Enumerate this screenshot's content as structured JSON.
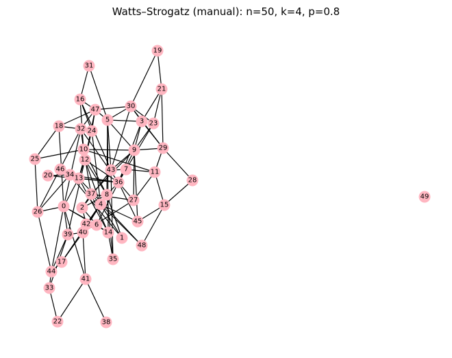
{
  "title": "Watts–Strogatz (manual): n=50, k=4, p=0.8",
  "style": {
    "node_color": "#ffb6c1",
    "edge_color": "#000000",
    "background": "#ffffff"
  },
  "nodes": [
    "0",
    "1",
    "2",
    "3",
    "4",
    "5",
    "6",
    "7",
    "8",
    "9",
    "10",
    "11",
    "12",
    "13",
    "14",
    "15",
    "16",
    "17",
    "18",
    "19",
    "20",
    "21",
    "22",
    "23",
    "24",
    "25",
    "26",
    "27",
    "28",
    "29",
    "30",
    "31",
    "32",
    "33",
    "34",
    "35",
    "36",
    "37",
    "38",
    "39",
    "40",
    "41",
    "42",
    "43",
    "44",
    "45",
    "46",
    "47",
    "48",
    "49"
  ],
  "edges": [
    [
      "19",
      "30"
    ],
    [
      "19",
      "21"
    ],
    [
      "21",
      "23"
    ],
    [
      "21",
      "29"
    ],
    [
      "21",
      "3"
    ],
    [
      "30",
      "3"
    ],
    [
      "30",
      "23"
    ],
    [
      "30",
      "29"
    ],
    [
      "30",
      "47"
    ],
    [
      "30",
      "43"
    ],
    [
      "30",
      "5"
    ],
    [
      "31",
      "16"
    ],
    [
      "31",
      "5"
    ],
    [
      "16",
      "47"
    ],
    [
      "16",
      "10"
    ],
    [
      "16",
      "24"
    ],
    [
      "16",
      "43"
    ],
    [
      "47",
      "18"
    ],
    [
      "47",
      "5"
    ],
    [
      "47",
      "32"
    ],
    [
      "47",
      "24"
    ],
    [
      "47",
      "12"
    ],
    [
      "5",
      "3"
    ],
    [
      "5",
      "9"
    ],
    [
      "5",
      "8"
    ],
    [
      "5",
      "14"
    ],
    [
      "5",
      "43"
    ],
    [
      "3",
      "9"
    ],
    [
      "3",
      "29"
    ],
    [
      "3",
      "36"
    ],
    [
      "23",
      "9"
    ],
    [
      "23",
      "7"
    ],
    [
      "18",
      "25"
    ],
    [
      "18",
      "32"
    ],
    [
      "18",
      "0"
    ],
    [
      "32",
      "24"
    ],
    [
      "32",
      "10"
    ],
    [
      "32",
      "0"
    ],
    [
      "32",
      "36"
    ],
    [
      "32",
      "26"
    ],
    [
      "24",
      "13"
    ],
    [
      "24",
      "4"
    ],
    [
      "24",
      "12"
    ],
    [
      "10",
      "25"
    ],
    [
      "10",
      "9"
    ],
    [
      "10",
      "11"
    ],
    [
      "10",
      "12"
    ],
    [
      "10",
      "37"
    ],
    [
      "10",
      "8"
    ],
    [
      "25",
      "26"
    ],
    [
      "9",
      "27"
    ],
    [
      "9",
      "37"
    ],
    [
      "9",
      "29"
    ],
    [
      "9",
      "43"
    ],
    [
      "9",
      "36"
    ],
    [
      "9",
      "45"
    ],
    [
      "29",
      "11"
    ],
    [
      "29",
      "28"
    ],
    [
      "7",
      "43"
    ],
    [
      "7",
      "11"
    ],
    [
      "7",
      "36"
    ],
    [
      "11",
      "15"
    ],
    [
      "11",
      "27"
    ],
    [
      "28",
      "15"
    ],
    [
      "15",
      "45"
    ],
    [
      "15",
      "48"
    ],
    [
      "12",
      "13"
    ],
    [
      "12",
      "36"
    ],
    [
      "12",
      "39"
    ],
    [
      "12",
      "4"
    ],
    [
      "12",
      "8"
    ],
    [
      "43",
      "2"
    ],
    [
      "43",
      "35"
    ],
    [
      "46",
      "34"
    ],
    [
      "46",
      "13"
    ],
    [
      "34",
      "20"
    ],
    [
      "34",
      "36"
    ],
    [
      "34",
      "26"
    ],
    [
      "34",
      "1"
    ],
    [
      "20",
      "36"
    ],
    [
      "13",
      "36"
    ],
    [
      "13",
      "48"
    ],
    [
      "13",
      "14"
    ],
    [
      "13",
      "0"
    ],
    [
      "37",
      "4"
    ],
    [
      "37",
      "2"
    ],
    [
      "37",
      "27"
    ],
    [
      "37",
      "14"
    ],
    [
      "36",
      "27"
    ],
    [
      "36",
      "8"
    ],
    [
      "36",
      "6"
    ],
    [
      "36",
      "45"
    ],
    [
      "8",
      "2"
    ],
    [
      "8",
      "4"
    ],
    [
      "8",
      "42"
    ],
    [
      "8",
      "35"
    ],
    [
      "8",
      "1"
    ],
    [
      "0",
      "26"
    ],
    [
      "0",
      "39"
    ],
    [
      "0",
      "41"
    ],
    [
      "0",
      "6"
    ],
    [
      "0",
      "44"
    ],
    [
      "0",
      "14"
    ],
    [
      "27",
      "40"
    ],
    [
      "2",
      "6"
    ],
    [
      "2",
      "42"
    ],
    [
      "4",
      "45"
    ],
    [
      "4",
      "40"
    ],
    [
      "4",
      "17"
    ],
    [
      "4",
      "1"
    ],
    [
      "4",
      "48"
    ],
    [
      "42",
      "6"
    ],
    [
      "42",
      "40"
    ],
    [
      "6",
      "14"
    ],
    [
      "39",
      "40"
    ],
    [
      "40",
      "41"
    ],
    [
      "40",
      "17"
    ],
    [
      "17",
      "44"
    ],
    [
      "44",
      "33"
    ],
    [
      "44",
      "39"
    ],
    [
      "26",
      "44"
    ],
    [
      "14",
      "35"
    ],
    [
      "41",
      "38"
    ],
    [
      "41",
      "22"
    ],
    [
      "33",
      "22"
    ],
    [
      "33",
      "39"
    ]
  ]
}
